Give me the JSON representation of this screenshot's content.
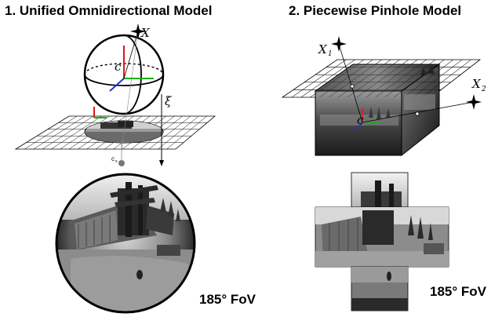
{
  "panel_left": {
    "title": "1. Unified Omnidirectional Model",
    "labels": {
      "point_x": "X",
      "center": "c",
      "xi": "ξ",
      "center_s": "c",
      "center_s_sub": "s"
    },
    "fov_label": "185° FoV"
  },
  "panel_right": {
    "title": "2. Piecewise Pinhole Model",
    "labels": {
      "point_x1": "X",
      "point_x1_sub": "1",
      "point_x2": "X",
      "point_x2_sub": "2",
      "center": "c"
    },
    "fov_label": "185° FoV"
  },
  "colors": {
    "axis_red": "#e01818",
    "axis_green": "#18b018",
    "axis_blue": "#2030d0"
  }
}
